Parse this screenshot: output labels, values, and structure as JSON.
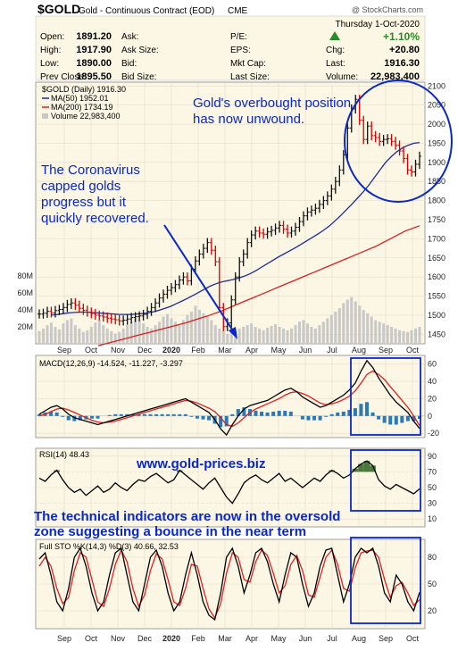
{
  "header": {
    "symbol": "$GOLD",
    "description": "Gold - Continuous Contract (EOD)",
    "exchange": "CME",
    "date": "Thursday 1-Oct-2020",
    "watermark": "@ StockCharts.com",
    "quote": {
      "open_label": "Open:",
      "open": "1891.20",
      "high_label": "High:",
      "high": "1917.90",
      "low_label": "Low:",
      "low": "1890.00",
      "prev_label": "Prev Close:",
      "prev": "1895.50",
      "ask_label": "Ask:",
      "ask": "",
      "asksize_label": "Ask Size:",
      "asksize": "",
      "bid_label": "Bid:",
      "bid": "",
      "bidsize_label": "Bid Size:",
      "bidsize": "",
      "pe_label": "P/E:",
      "pe": "",
      "eps_label": "EPS:",
      "eps": "",
      "mktcap_label": "Mkt Cap:",
      "mktcap": "",
      "lastsize_label": "Last Size:",
      "lastsize": "",
      "chg_pct": "+1.10%",
      "chg_label": "Chg:",
      "chg": "+20.80",
      "last_label": "Last:",
      "last": "1916.30",
      "volume_label": "Volume:",
      "volume": "22,983,400"
    }
  },
  "annotations": {
    "overbought_line1": "Gold's overbought position",
    "overbought_line2": "has now unwound.",
    "corona_line1": "The Coronavirus",
    "corona_line2": "capped golds",
    "corona_line3": "progress but it",
    "corona_line4": "quickly recovered.",
    "website": "www.gold-prices.biz",
    "oversold_line1": "The technical indicators are now in the oversold",
    "oversold_line2": "zone suggesting a bounce in the near term"
  },
  "colors": {
    "price_up": "#111111",
    "price_down": "#cc0000",
    "ma50": "#1c2a9c",
    "ma200": "#d42020",
    "volume": "#c8c8c8",
    "macd_line": "#000000",
    "macd_signal": "#e02020",
    "histogram": "#2a7ab8",
    "rsi_line": "#000000",
    "rsi_fill": "#4a7a3a",
    "sto_k": "#000000",
    "sto_d": "#e02020",
    "annotation": "#0a28c8"
  },
  "chart_data": [
    {
      "type": "line",
      "title": "$GOLD (Daily) 1916.30",
      "legend_position": "top-left",
      "legend": [
        "$GOLD (Daily) 1916.30",
        "MA(50) 1952.01",
        "MA(200) 1734.19",
        "Volume 22,983,400"
      ],
      "x_ticks": [
        "Sep",
        "Oct",
        "Nov",
        "Dec",
        "2020",
        "Feb",
        "Mar",
        "Apr",
        "May",
        "Jun",
        "Jul",
        "Aug",
        "Sep",
        "Oct"
      ],
      "y_ticks": [
        1450,
        1500,
        1550,
        1600,
        1650,
        1700,
        1750,
        1800,
        1850,
        1900,
        1950,
        2000,
        2050,
        2100
      ],
      "ylim": [
        1425,
        2110
      ],
      "volume_ticks": [
        "80M",
        "60M",
        "40M",
        "20M"
      ],
      "volume_ylim": [
        0,
        100
      ],
      "grid": true,
      "series": [
        {
          "name": "$GOLD (Daily) 1916.30",
          "values": [
            1503,
            1505,
            1510,
            1506,
            1512,
            1515,
            1520,
            1528,
            1532,
            1526,
            1518,
            1513,
            1508,
            1504,
            1500,
            1498,
            1495,
            1492,
            1490,
            1488,
            1485,
            1487,
            1490,
            1494,
            1496,
            1498,
            1502,
            1510,
            1520,
            1532,
            1545,
            1555,
            1565,
            1572,
            1580,
            1592,
            1600,
            1590,
            1620,
            1642,
            1660,
            1675,
            1690,
            1670,
            1640,
            1520,
            1470,
            1480,
            1540,
            1600,
            1640,
            1660,
            1690,
            1710,
            1720,
            1715,
            1712,
            1718,
            1722,
            1728,
            1735,
            1725,
            1715,
            1720,
            1730,
            1745,
            1760,
            1770,
            1775,
            1780,
            1790,
            1800,
            1812,
            1830,
            1850,
            1880,
            1920,
            1990,
            2040,
            2065,
            2010,
            1960,
            1995,
            1970,
            1965,
            1955,
            1960,
            1962,
            1955,
            1945,
            1930,
            1910,
            1880,
            1875,
            1895,
            1916
          ]
        },
        {
          "name": "MA(50) 1952.01",
          "values": [
            1500,
            1502,
            1504,
            1506,
            1507,
            1508,
            1508,
            1507,
            1506,
            1505,
            1504,
            1503,
            1502,
            1502,
            1502,
            1503,
            1504,
            1506,
            1509,
            1513,
            1518,
            1523,
            1530,
            1537,
            1544,
            1552,
            1560,
            1568,
            1576,
            1582,
            1587,
            1590,
            1593,
            1597,
            1602,
            1608,
            1616,
            1625,
            1634,
            1643,
            1652,
            1660,
            1668,
            1676,
            1685,
            1694,
            1703,
            1712,
            1722,
            1733,
            1746,
            1760,
            1775,
            1790,
            1806,
            1822,
            1840,
            1860,
            1880,
            1900,
            1915,
            1928,
            1938,
            1945,
            1950,
            1952
          ]
        },
        {
          "name": "MA(200) 1734.19",
          "values": [
            1420,
            1425,
            1430,
            1435,
            1440,
            1445,
            1450,
            1455,
            1460,
            1465,
            1470,
            1475,
            1480,
            1486,
            1492,
            1498,
            1505,
            1512,
            1520,
            1528,
            1536,
            1544,
            1552,
            1560,
            1568,
            1576,
            1584,
            1592,
            1600,
            1608,
            1616,
            1624,
            1632,
            1640,
            1648,
            1656,
            1664,
            1672,
            1680,
            1690,
            1700,
            1710,
            1720,
            1727,
            1734
          ]
        },
        {
          "name": "Volume 22,983,400",
          "values": [
            15,
            18,
            22,
            25,
            20,
            17,
            24,
            28,
            30,
            22,
            18,
            14,
            16,
            20,
            25,
            28,
            22,
            18,
            15,
            12,
            14,
            18,
            22,
            26,
            30,
            28,
            24,
            20,
            18,
            22,
            26,
            32,
            35,
            30,
            26,
            22,
            28,
            34,
            38,
            45,
            40,
            36,
            32,
            28,
            22,
            18,
            15,
            12,
            14,
            16,
            18,
            20,
            22,
            24,
            20,
            18,
            16,
            19,
            21,
            23,
            20,
            18,
            16,
            18,
            22,
            26,
            28,
            24,
            20,
            18,
            22,
            26,
            30,
            34,
            38,
            42,
            48,
            52,
            55,
            50,
            45,
            40,
            36,
            32,
            28,
            26,
            24,
            22,
            20,
            18,
            16,
            15,
            14,
            16,
            18,
            20
          ]
        }
      ]
    },
    {
      "type": "line",
      "title": "MACD(12,26,9) -14.524, -11.227, -3.297",
      "legend": [
        "MACD(12,26,9) -14.524",
        "-11.227",
        "-3.297"
      ],
      "y_ticks": [
        -20,
        0,
        20,
        40,
        60
      ],
      "ylim": [
        -25,
        70
      ],
      "series": [
        {
          "name": "MACD(12,26,9) -14.524",
          "values": [
            2,
            6,
            10,
            12,
            8,
            2,
            -2,
            -4,
            -6,
            -8,
            -10,
            -8,
            -6,
            -4,
            -2,
            0,
            2,
            4,
            6,
            8,
            10,
            12,
            14,
            16,
            18,
            20,
            16,
            12,
            8,
            4,
            -4,
            -15,
            -22,
            -10,
            0,
            8,
            12,
            14,
            16,
            18,
            22,
            26,
            30,
            32,
            28,
            22,
            18,
            14,
            10,
            12,
            16,
            20,
            24,
            30,
            38,
            52,
            64,
            56,
            44,
            34,
            24,
            16,
            10,
            4,
            -6,
            -14.5
          ]
        },
        {
          "name": "-11.227",
          "values": [
            0,
            2,
            5,
            8,
            9,
            7,
            4,
            1,
            -2,
            -5,
            -7,
            -8,
            -7,
            -6,
            -4,
            -2,
            0,
            2,
            4,
            6,
            8,
            10,
            12,
            14,
            16,
            18,
            17,
            15,
            12,
            9,
            5,
            -2,
            -10,
            -12,
            -8,
            -2,
            4,
            8,
            11,
            14,
            17,
            20,
            24,
            27,
            28,
            26,
            23,
            19,
            15,
            13,
            14,
            16,
            19,
            23,
            29,
            38,
            48,
            52,
            48,
            42,
            34,
            26,
            18,
            10,
            0,
            -11.2
          ]
        },
        {
          "name": "-3.297",
          "values": [
            2,
            4,
            5,
            4,
            -1,
            -5,
            -6,
            -5,
            -4,
            -3,
            -3,
            0,
            1,
            2,
            2,
            2,
            2,
            2,
            2,
            2,
            2,
            2,
            2,
            2,
            2,
            2,
            -1,
            -3,
            -4,
            -5,
            -9,
            -13,
            -12,
            2,
            8,
            10,
            8,
            6,
            5,
            4,
            5,
            6,
            6,
            5,
            0,
            -4,
            -5,
            -5,
            -5,
            -1,
            2,
            4,
            5,
            7,
            9,
            14,
            16,
            4,
            -4,
            -8,
            -10,
            -10,
            -8,
            -6,
            -6,
            -3.3
          ]
        }
      ]
    },
    {
      "type": "line",
      "title": "RSI(14) 48.43",
      "legend": [
        "RSI(14) 48.43"
      ],
      "y_ticks": [
        10,
        30,
        50,
        70,
        90
      ],
      "ylim": [
        0,
        100
      ],
      "series": [
        {
          "name": "RSI(14) 48.43",
          "values": [
            62,
            58,
            66,
            72,
            60,
            50,
            44,
            48,
            40,
            46,
            52,
            44,
            48,
            56,
            50,
            46,
            54,
            60,
            58,
            64,
            68,
            62,
            56,
            60,
            72,
            66,
            60,
            54,
            48,
            56,
            62,
            50,
            38,
            30,
            42,
            56,
            62,
            66,
            60,
            56,
            62,
            68,
            58,
            62,
            56,
            50,
            56,
            62,
            58,
            66,
            72,
            68,
            62,
            66,
            74,
            80,
            84,
            78,
            60,
            52,
            48,
            54,
            50,
            46,
            42,
            48.4
          ]
        }
      ]
    },
    {
      "type": "line",
      "title": "Full STO %K(14,3) %D(3) 40.66, 32.53",
      "legend": [
        "Full STO %K(14,3) %D(3) 40.66",
        "32.53"
      ],
      "y_ticks": [
        20,
        50,
        80
      ],
      "ylim": [
        0,
        100
      ],
      "series": [
        {
          "name": "Full STO %K(14,3) %D(3) 40.66",
          "values": [
            78,
            85,
            60,
            30,
            20,
            45,
            80,
            90,
            70,
            40,
            20,
            30,
            60,
            85,
            90,
            60,
            30,
            20,
            50,
            80,
            88,
            70,
            40,
            20,
            30,
            60,
            85,
            60,
            30,
            15,
            10,
            40,
            80,
            90,
            70,
            40,
            60,
            85,
            90,
            75,
            50,
            30,
            60,
            85,
            80,
            50,
            25,
            40,
            70,
            88,
            90,
            60,
            30,
            50,
            80,
            90,
            85,
            90,
            70,
            40,
            30,
            60,
            50,
            30,
            20,
            40.7
          ]
        },
        {
          "name": "32.53",
          "values": [
            70,
            80,
            70,
            45,
            28,
            35,
            65,
            85,
            80,
            55,
            30,
            25,
            45,
            72,
            88,
            75,
            45,
            25,
            38,
            65,
            84,
            78,
            55,
            30,
            26,
            45,
            72,
            70,
            45,
            22,
            12,
            28,
            62,
            85,
            80,
            55,
            52,
            75,
            88,
            82,
            62,
            40,
            48,
            72,
            82,
            65,
            38,
            35,
            58,
            80,
            88,
            72,
            45,
            42,
            68,
            85,
            87,
            88,
            80,
            55,
            35,
            48,
            52,
            40,
            26,
            32.5
          ]
        }
      ]
    }
  ]
}
